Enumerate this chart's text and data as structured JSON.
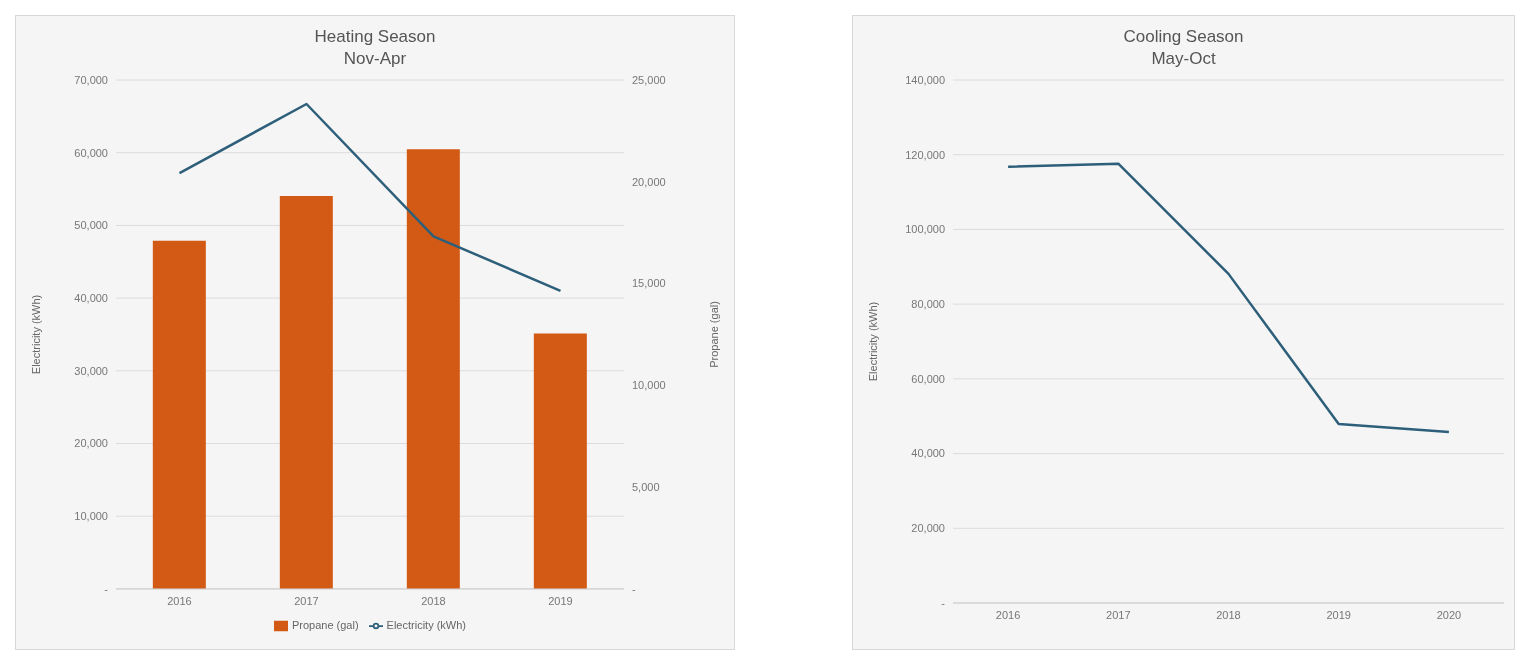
{
  "chart_data": [
    {
      "type": "bar",
      "title": "Heating Season",
      "subtitle": "Nov-Apr",
      "ylabel": "Electricity (kWh)",
      "y2label": "Propane (gal)",
      "categories": [
        "2016",
        "2017",
        "2018",
        "2019"
      ],
      "series": [
        {
          "name": "Propane (gal)",
          "type": "bar",
          "axis": "y2",
          "color": "#d35a14",
          "values": [
            17100,
            19300,
            21600,
            12550
          ]
        },
        {
          "name": "Electricity (kWh)",
          "type": "line",
          "color": "#2e5f7a",
          "values": [
            57200,
            66700,
            48500,
            41000
          ]
        }
      ],
      "ylim": [
        0,
        70000
      ],
      "yticks": [
        {
          "value": 0,
          "label": "-"
        },
        {
          "value": 10000,
          "label": "10,000"
        },
        {
          "value": 20000,
          "label": "20,000"
        },
        {
          "value": 30000,
          "label": "30,000"
        },
        {
          "value": 40000,
          "label": "40,000"
        },
        {
          "value": 50000,
          "label": "50,000"
        },
        {
          "value": 60000,
          "label": "60,000"
        },
        {
          "value": 70000,
          "label": "70,000"
        }
      ],
      "y2lim": [
        0,
        25000
      ],
      "y2ticks": [
        {
          "value": 0,
          "label": "-"
        },
        {
          "value": 5000,
          "label": "5,000"
        },
        {
          "value": 10000,
          "label": "10,000"
        },
        {
          "value": 15000,
          "label": "15,000"
        },
        {
          "value": 20000,
          "label": "20,000"
        },
        {
          "value": 25000,
          "label": "25,000"
        }
      ],
      "grid": "y",
      "legend": "bottom"
    },
    {
      "type": "line",
      "title": "Cooling Season",
      "subtitle": "May-Oct",
      "ylabel": "Electricity (kWh)",
      "categories": [
        "2016",
        "2017",
        "2018",
        "2019",
        "2020"
      ],
      "series": [
        {
          "color": "#2e5f7a",
          "values": [
            116800,
            117600,
            88100,
            47900,
            45800
          ]
        }
      ],
      "ylim": [
        0,
        140000
      ],
      "yticks": [
        {
          "value": 0,
          "label": "-"
        },
        {
          "value": 20000,
          "label": "20,000"
        },
        {
          "value": 40000,
          "label": "40,000"
        },
        {
          "value": 60000,
          "label": "60,000"
        },
        {
          "value": 80000,
          "label": "80,000"
        },
        {
          "value": 100000,
          "label": "100,000"
        },
        {
          "value": 120000,
          "label": "120,000"
        },
        {
          "value": 140000,
          "label": "140,000"
        }
      ],
      "grid": "y",
      "legend": false
    }
  ]
}
